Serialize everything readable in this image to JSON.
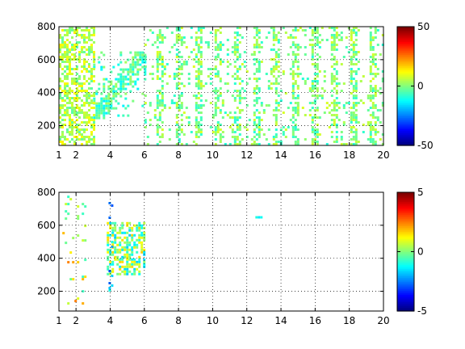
{
  "chart_data": [
    {
      "type": "heatmap",
      "title": "",
      "xlabel": "",
      "ylabel": "",
      "xlim": [
        1,
        20
      ],
      "ylim": [
        80,
        800
      ],
      "x_ticks": [
        1,
        2,
        4,
        6,
        8,
        10,
        12,
        14,
        16,
        18,
        20
      ],
      "y_ticks": [
        200,
        400,
        600,
        800
      ],
      "grid": true,
      "colormap": "jet",
      "clim": [
        -50,
        50
      ],
      "colorbar_ticks": [
        -50,
        0,
        50
      ],
      "description_of_field": "dense speckled field over full domain; strong diagonal band of higher density from (3,300) to (6,650); sparse vertical streaks at regular x spacing beyond x=7",
      "field_regions": [
        {
          "x": [
            3.0,
            6.0
          ],
          "y": [
            250,
            650
          ],
          "value_mean": -5,
          "density": 0.85
        },
        {
          "x": [
            1.0,
            3.0
          ],
          "y": [
            80,
            800
          ],
          "value_mean": 5,
          "density": 0.55
        },
        {
          "x": [
            6.0,
            20.0
          ],
          "y": [
            80,
            800
          ],
          "value_mean": 0,
          "density": 0.3
        }
      ]
    },
    {
      "type": "heatmap",
      "title": "",
      "xlabel": "",
      "ylabel": "",
      "xlim": [
        1,
        20
      ],
      "ylim": [
        80,
        800
      ],
      "x_ticks": [
        1,
        2,
        4,
        6,
        8,
        10,
        12,
        14,
        16,
        18,
        20
      ],
      "y_ticks": [
        200,
        400,
        600,
        800
      ],
      "grid": true,
      "colormap": "jet",
      "clim": [
        -5,
        5
      ],
      "colorbar_ticks": [
        -5,
        0,
        5
      ],
      "field_regions": [
        {
          "x": [
            3.8,
            6.0
          ],
          "y": [
            300,
            620
          ],
          "value_mean": 0,
          "density": 0.6
        },
        {
          "x": [
            1.2,
            2.6
          ],
          "y": [
            100,
            780
          ],
          "value_mean": 1,
          "density": 0.08
        },
        {
          "x": [
            3.9,
            4.1
          ],
          "y": [
            80,
            800
          ],
          "value_mean": -2,
          "density": 0.1
        },
        {
          "x": [
            12.5,
            12.8
          ],
          "y": [
            650,
            670
          ],
          "value_mean": 0,
          "density": 0.5
        }
      ]
    }
  ]
}
